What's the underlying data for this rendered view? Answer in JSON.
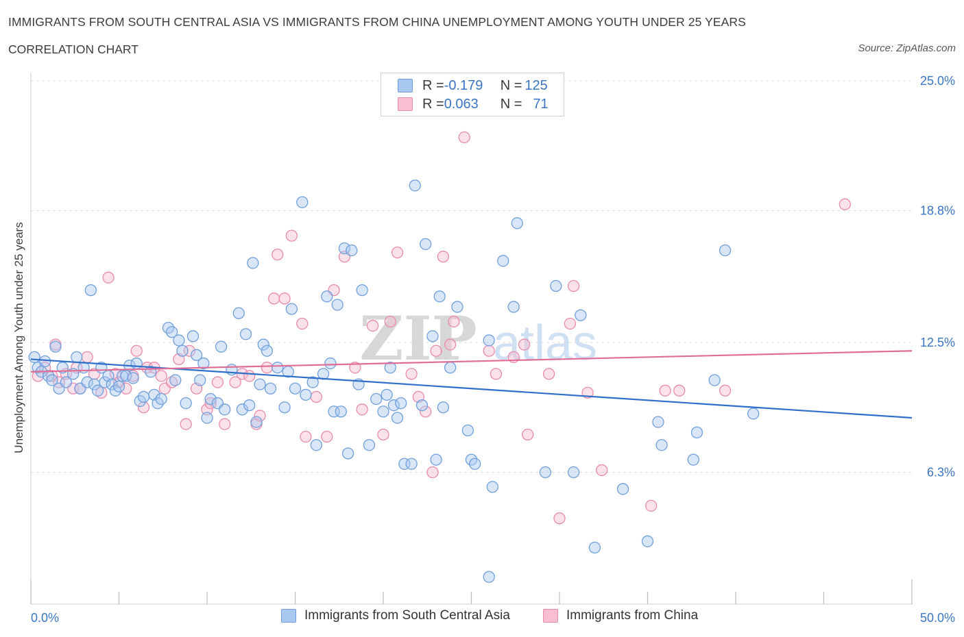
{
  "header": {
    "title": "IMMIGRANTS FROM SOUTH CENTRAL ASIA VS IMMIGRANTS FROM CHINA UNEMPLOYMENT AMONG YOUTH UNDER 25 YEARS",
    "subtitle": "CORRELATION CHART",
    "source": "Source: ZipAtlas.com"
  },
  "legend": {
    "series1": {
      "r_label": "R = ",
      "r_value": "-0.179",
      "n_label": "N = ",
      "n_value": "125"
    },
    "series2": {
      "r_label": "R = ",
      "r_value": "0.063",
      "n_label": "N = ",
      "n_value": "71"
    }
  },
  "watermark": {
    "zip": "ZIP",
    "atlas": "atlas"
  },
  "colors": {
    "blue_fill": "#a9c8f0",
    "blue_stroke": "#6f9fdc",
    "blue_line": "#2f6fc9",
    "pink_fill": "#f7bfd0",
    "pink_stroke": "#e98aab",
    "pink_line": "#e06d96",
    "axis_text": "#3a75c4",
    "grid": "#dddddd"
  },
  "chart_data": {
    "type": "scatter",
    "title": "IMMIGRANTS FROM SOUTH CENTRAL ASIA VS IMMIGRANTS FROM CHINA UNEMPLOYMENT AMONG YOUTH UNDER 25 YEARS",
    "xlabel": "",
    "ylabel": "Unemployment Among Youth under 25 years",
    "xlim": [
      0,
      50
    ],
    "ylim": [
      0,
      25
    ],
    "x_tick_labels": [
      "0.0%",
      "50.0%"
    ],
    "y_ticks": [
      6.3,
      12.5,
      18.8,
      25.0
    ],
    "y_tick_labels": [
      "6.3%",
      "12.5%",
      "18.8%",
      "25.0%"
    ],
    "series": [
      {
        "name": "Immigrants from South Central Asia",
        "color": "blue",
        "trend": {
          "x": [
            0,
            50
          ],
          "y": [
            11.7,
            8.9
          ]
        },
        "points": [
          [
            0.2,
            11.8
          ],
          [
            0.4,
            11.3
          ],
          [
            0.6,
            11.1
          ],
          [
            0.8,
            11.6
          ],
          [
            1.0,
            10.9
          ],
          [
            1.2,
            10.7
          ],
          [
            1.4,
            12.3
          ],
          [
            1.6,
            10.3
          ],
          [
            1.8,
            11.3
          ],
          [
            2.0,
            10.6
          ],
          [
            2.4,
            11.0
          ],
          [
            2.6,
            11.8
          ],
          [
            2.8,
            10.3
          ],
          [
            3.0,
            11.3
          ],
          [
            3.2,
            10.6
          ],
          [
            3.4,
            15.0
          ],
          [
            3.6,
            10.5
          ],
          [
            3.8,
            10.2
          ],
          [
            4.0,
            11.3
          ],
          [
            4.2,
            10.6
          ],
          [
            4.4,
            10.9
          ],
          [
            4.6,
            10.5
          ],
          [
            4.8,
            10.2
          ],
          [
            5.0,
            10.4
          ],
          [
            5.2,
            10.9
          ],
          [
            5.4,
            10.9
          ],
          [
            5.6,
            11.4
          ],
          [
            5.8,
            10.8
          ],
          [
            6.0,
            11.5
          ],
          [
            6.2,
            9.7
          ],
          [
            6.4,
            9.9
          ],
          [
            6.8,
            11.1
          ],
          [
            7.0,
            10.0
          ],
          [
            7.2,
            9.6
          ],
          [
            7.4,
            9.8
          ],
          [
            7.8,
            13.2
          ],
          [
            8.0,
            13.0
          ],
          [
            8.2,
            10.7
          ],
          [
            8.4,
            12.6
          ],
          [
            8.6,
            12.1
          ],
          [
            8.8,
            9.6
          ],
          [
            9.2,
            12.8
          ],
          [
            9.4,
            11.9
          ],
          [
            9.6,
            10.7
          ],
          [
            9.8,
            11.5
          ],
          [
            10.0,
            8.9
          ],
          [
            10.2,
            9.8
          ],
          [
            10.6,
            9.6
          ],
          [
            10.8,
            12.3
          ],
          [
            11.0,
            9.3
          ],
          [
            11.4,
            11.2
          ],
          [
            11.8,
            13.9
          ],
          [
            12.0,
            9.3
          ],
          [
            12.2,
            12.9
          ],
          [
            12.4,
            9.5
          ],
          [
            12.6,
            16.3
          ],
          [
            12.8,
            8.7
          ],
          [
            13.0,
            10.5
          ],
          [
            13.2,
            12.4
          ],
          [
            13.4,
            12.1
          ],
          [
            13.6,
            10.3
          ],
          [
            14.0,
            11.3
          ],
          [
            14.4,
            9.4
          ],
          [
            14.6,
            11.1
          ],
          [
            14.8,
            14.1
          ],
          [
            15.0,
            10.3
          ],
          [
            15.4,
            19.2
          ],
          [
            15.6,
            10.0
          ],
          [
            16.0,
            10.6
          ],
          [
            16.2,
            7.6
          ],
          [
            16.6,
            11.0
          ],
          [
            16.8,
            14.7
          ],
          [
            17.0,
            11.5
          ],
          [
            17.2,
            9.2
          ],
          [
            17.4,
            14.3
          ],
          [
            17.6,
            9.2
          ],
          [
            17.8,
            17.0
          ],
          [
            18.0,
            7.2
          ],
          [
            18.2,
            16.9
          ],
          [
            18.6,
            10.5
          ],
          [
            18.8,
            15.0
          ],
          [
            19.2,
            7.6
          ],
          [
            19.6,
            9.8
          ],
          [
            20.0,
            9.2
          ],
          [
            20.2,
            10.0
          ],
          [
            20.4,
            11.3
          ],
          [
            20.6,
            9.5
          ],
          [
            20.8,
            8.9
          ],
          [
            21.0,
            9.6
          ],
          [
            21.2,
            6.7
          ],
          [
            21.6,
            6.7
          ],
          [
            21.8,
            20.0
          ],
          [
            22.2,
            9.5
          ],
          [
            22.4,
            17.2
          ],
          [
            22.8,
            12.8
          ],
          [
            23.0,
            6.9
          ],
          [
            23.2,
            14.7
          ],
          [
            23.4,
            9.4
          ],
          [
            23.8,
            11.3
          ],
          [
            24.2,
            14.2
          ],
          [
            24.8,
            8.3
          ],
          [
            25.0,
            6.9
          ],
          [
            25.2,
            6.7
          ],
          [
            26.0,
            12.6
          ],
          [
            26.2,
            5.6
          ],
          [
            26.8,
            16.4
          ],
          [
            27.4,
            14.2
          ],
          [
            27.6,
            18.2
          ],
          [
            29.2,
            6.3
          ],
          [
            29.8,
            15.2
          ],
          [
            30.8,
            6.3
          ],
          [
            31.2,
            13.8
          ],
          [
            32.0,
            2.7
          ],
          [
            33.6,
            5.5
          ],
          [
            35.0,
            3.0
          ],
          [
            35.6,
            8.7
          ],
          [
            35.8,
            7.6
          ],
          [
            37.6,
            6.9
          ],
          [
            37.8,
            8.2
          ],
          [
            38.8,
            10.7
          ],
          [
            39.4,
            16.9
          ],
          [
            41.0,
            9.1
          ],
          [
            26.0,
            1.3
          ]
        ]
      },
      {
        "name": "Immigrants from China",
        "color": "pink",
        "trend": {
          "x": [
            0,
            50
          ],
          "y": [
            11.1,
            12.1
          ]
        },
        "points": [
          [
            0.4,
            10.9
          ],
          [
            0.8,
            11.3
          ],
          [
            1.2,
            10.9
          ],
          [
            1.4,
            12.4
          ],
          [
            1.6,
            10.6
          ],
          [
            2.0,
            11.0
          ],
          [
            2.4,
            10.3
          ],
          [
            2.6,
            11.3
          ],
          [
            2.8,
            10.3
          ],
          [
            3.2,
            11.8
          ],
          [
            3.6,
            11.0
          ],
          [
            4.0,
            10.1
          ],
          [
            4.4,
            15.6
          ],
          [
            4.8,
            11.0
          ],
          [
            5.0,
            10.6
          ],
          [
            5.4,
            10.3
          ],
          [
            5.8,
            10.9
          ],
          [
            6.0,
            12.1
          ],
          [
            6.4,
            9.4
          ],
          [
            6.6,
            11.3
          ],
          [
            7.0,
            11.3
          ],
          [
            7.4,
            10.9
          ],
          [
            7.6,
            10.3
          ],
          [
            8.0,
            10.6
          ],
          [
            8.4,
            11.7
          ],
          [
            8.8,
            8.6
          ],
          [
            9.0,
            12.1
          ],
          [
            9.4,
            10.3
          ],
          [
            10.0,
            9.3
          ],
          [
            10.2,
            9.6
          ],
          [
            10.6,
            10.6
          ],
          [
            11.0,
            8.6
          ],
          [
            11.6,
            10.6
          ],
          [
            12.0,
            11.0
          ],
          [
            12.4,
            10.9
          ],
          [
            12.8,
            8.6
          ],
          [
            13.0,
            9.0
          ],
          [
            13.4,
            11.3
          ],
          [
            13.8,
            14.6
          ],
          [
            14.0,
            16.7
          ],
          [
            14.4,
            14.6
          ],
          [
            14.8,
            17.6
          ],
          [
            15.4,
            13.4
          ],
          [
            15.6,
            8.0
          ],
          [
            16.2,
            9.9
          ],
          [
            16.8,
            8.0
          ],
          [
            17.2,
            15.0
          ],
          [
            17.8,
            16.6
          ],
          [
            18.4,
            11.3
          ],
          [
            18.8,
            9.3
          ],
          [
            19.4,
            13.3
          ],
          [
            20.0,
            8.1
          ],
          [
            20.4,
            13.5
          ],
          [
            20.8,
            16.8
          ],
          [
            21.6,
            11.0
          ],
          [
            22.0,
            9.9
          ],
          [
            22.4,
            9.2
          ],
          [
            22.8,
            6.3
          ],
          [
            23.0,
            12.1
          ],
          [
            23.4,
            16.6
          ],
          [
            23.8,
            12.4
          ],
          [
            24.0,
            13.5
          ],
          [
            24.6,
            22.3
          ],
          [
            26.0,
            12.1
          ],
          [
            26.4,
            11.0
          ],
          [
            27.4,
            11.8
          ],
          [
            28.0,
            12.4
          ],
          [
            28.2,
            8.1
          ],
          [
            29.4,
            11.0
          ],
          [
            30.0,
            4.1
          ],
          [
            30.6,
            13.4
          ],
          [
            30.8,
            15.2
          ],
          [
            31.6,
            10.1
          ],
          [
            32.4,
            6.4
          ],
          [
            35.2,
            4.7
          ],
          [
            36.0,
            10.2
          ],
          [
            36.8,
            10.2
          ],
          [
            39.4,
            10.2
          ],
          [
            46.2,
            19.1
          ]
        ]
      }
    ]
  },
  "bottom_legend": {
    "series1_label": "Immigrants from South Central Asia",
    "series2_label": "Immigrants from China"
  }
}
